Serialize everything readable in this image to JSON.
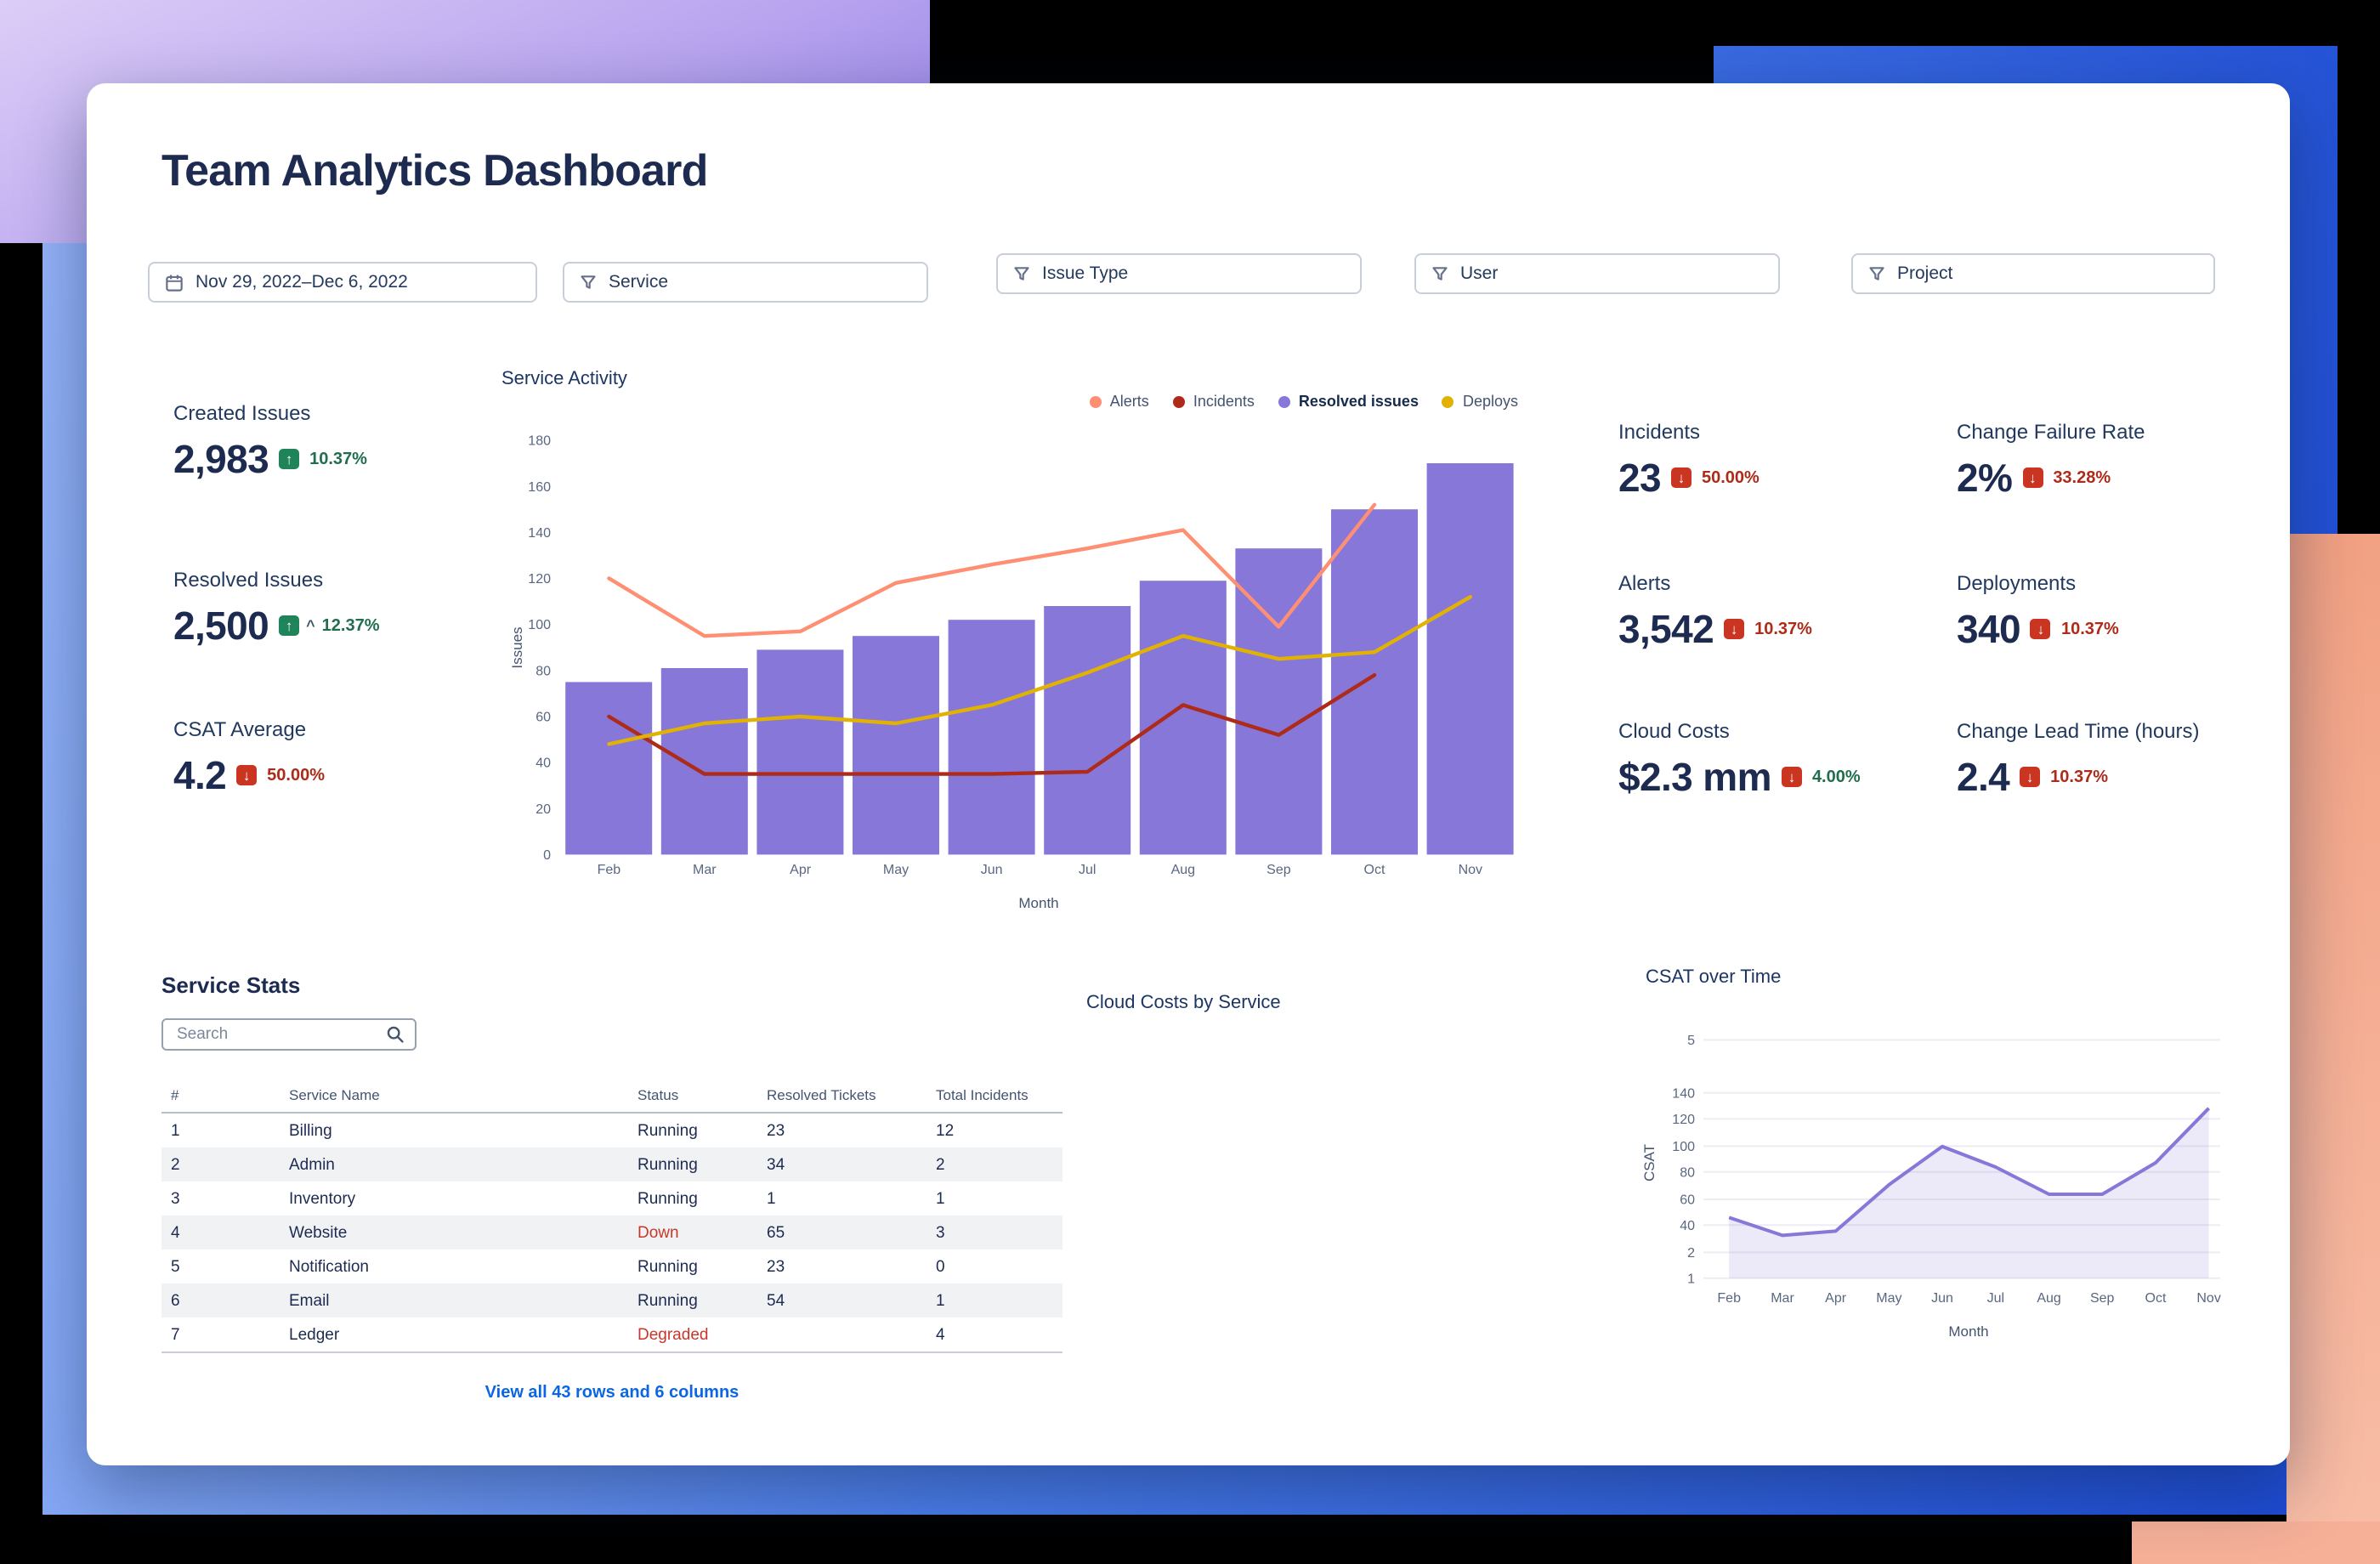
{
  "title": "Team Analytics Dashboard",
  "filters": {
    "date_range": "Nov 29, 2022–Dec 6, 2022",
    "service": "Service",
    "issue_type": "Issue Type",
    "user": "User",
    "project": "Project"
  },
  "kpis_left": [
    {
      "label": "Created Issues",
      "value": "2,983",
      "delta": "10.37%",
      "direction": "up",
      "delta_color": "green"
    },
    {
      "label": "Resolved Issues",
      "value": "2,500",
      "delta": "12.37%",
      "direction": "up",
      "delta_color": "green",
      "caret": "^"
    },
    {
      "label": "CSAT Average",
      "value": "4.2",
      "delta": "50.00%",
      "direction": "down",
      "delta_color": "red"
    }
  ],
  "kpis_right": [
    {
      "label": "Incidents",
      "value": "23",
      "delta": "50.00%",
      "direction": "down",
      "delta_color": "red"
    },
    {
      "label": "Change Failure Rate",
      "value": "2%",
      "delta": "33.28%",
      "direction": "down",
      "delta_color": "red"
    },
    {
      "label": "Alerts",
      "value": "3,542",
      "delta": "10.37%",
      "direction": "down",
      "delta_color": "red"
    },
    {
      "label": "Deployments",
      "value": "340",
      "delta": "10.37%",
      "direction": "down",
      "delta_color": "red"
    },
    {
      "label": "Cloud Costs",
      "value": "$2.3 mm",
      "delta": "4.00%",
      "direction": "down",
      "delta_color": "green"
    },
    {
      "label": "Change Lead Time (hours)",
      "value": "2.4",
      "delta": "10.37%",
      "direction": "down",
      "delta_color": "red"
    }
  ],
  "sections": {
    "cloud_costs_title": "Cloud Costs by Service"
  },
  "service_stats": {
    "title": "Service Stats",
    "search_placeholder": "Search",
    "columns": [
      "#",
      "Service Name",
      "Status",
      "Resolved Tickets",
      "Total Incidents"
    ],
    "rows": [
      [
        "1",
        "Billing",
        "Running",
        "23",
        "12"
      ],
      [
        "2",
        "Admin",
        "Running",
        "34",
        "2"
      ],
      [
        "3",
        "Inventory",
        "Running",
        "1",
        "1"
      ],
      [
        "4",
        "Website",
        "Down",
        "65",
        "3"
      ],
      [
        "5",
        "Notification",
        "Running",
        "23",
        "0"
      ],
      [
        "6",
        "Email",
        "Running",
        "54",
        "1"
      ],
      [
        "7",
        "Ledger",
        "Degraded",
        "",
        "4"
      ]
    ],
    "footer_link": "View all 43 rows and 6 columns"
  },
  "colors": {
    "purple": "#8777D9",
    "salmon": "#FF8F73",
    "dark_red": "#AE2A19",
    "yellow": "#E2B203",
    "green_badge": "#1F845A",
    "red_badge": "#CA3521",
    "green_text": "#216E4E",
    "red_text": "#AE2A19",
    "link_blue": "#0C66E4",
    "navy": "#172B4D"
  },
  "chart_data": [
    {
      "type": "bar",
      "title": "Service Activity",
      "categories": [
        "Feb",
        "Mar",
        "Apr",
        "May",
        "Jun",
        "Jul",
        "Aug",
        "Sep",
        "Oct",
        "Nov"
      ],
      "xlabel": "Month",
      "ylabel": "Issues",
      "ylim": [
        0,
        180
      ],
      "ytick_step": 20,
      "grid": false,
      "legend_position": "top-right",
      "series": [
        {
          "name": "Alerts",
          "type": "line",
          "color": "#FF8F73",
          "values": [
            120,
            95,
            97,
            118,
            126,
            133,
            141,
            99,
            152,
            null
          ]
        },
        {
          "name": "Incidents",
          "type": "line",
          "color": "#AE2A19",
          "values": [
            60,
            35,
            35,
            35,
            35,
            36,
            65,
            52,
            78,
            null
          ]
        },
        {
          "name": "Resolved issues",
          "type": "bar",
          "color": "#8777D9",
          "legend_bold": true,
          "values": [
            75,
            81,
            89,
            95,
            102,
            108,
            119,
            133,
            150,
            170
          ]
        },
        {
          "name": "Deploys",
          "type": "line",
          "color": "#E2B203",
          "values": [
            48,
            57,
            60,
            57,
            65,
            79,
            95,
            85,
            88,
            112
          ]
        }
      ]
    },
    {
      "type": "area",
      "title": "CSAT over Time",
      "categories": [
        "Feb",
        "Mar",
        "Apr",
        "May",
        "Jun",
        "Jul",
        "Aug",
        "Sep",
        "Oct",
        "Nov"
      ],
      "xlabel": "Month",
      "ylabel": "CSAT",
      "ytick_labels": [
        "5",
        "140",
        "120",
        "100",
        "80",
        "60",
        "40",
        "2",
        "1"
      ],
      "values": [
        48,
        35,
        38,
        72,
        100,
        85,
        65,
        65,
        88,
        128
      ],
      "color": "#8777D9",
      "fill_opacity": 0.16,
      "grid": true
    }
  ]
}
